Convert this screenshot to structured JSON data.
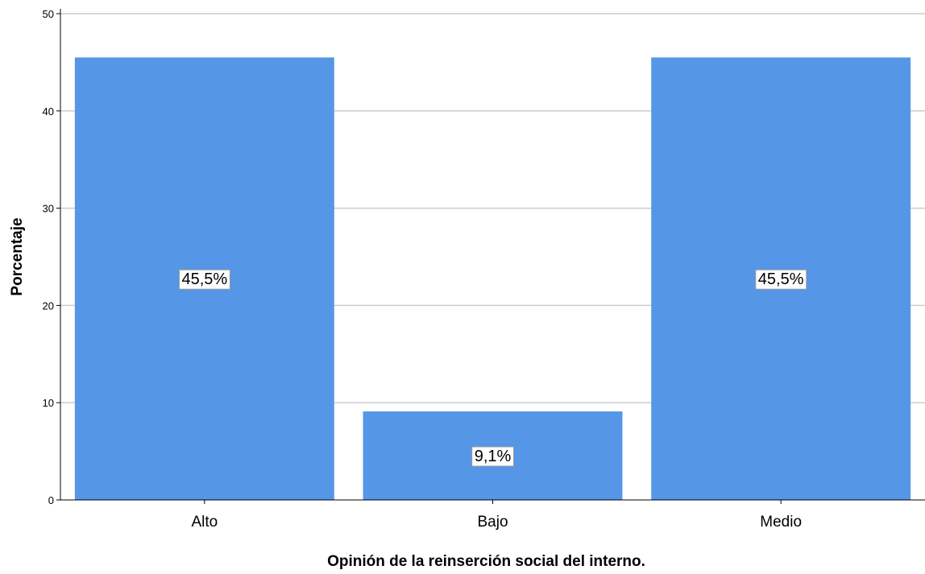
{
  "chart_data": {
    "type": "bar",
    "categories": [
      "Alto",
      "Bajo",
      "Medio"
    ],
    "values": [
      45.5,
      9.1,
      45.5
    ],
    "data_labels": [
      "45,5%",
      "9,1%",
      "45,5%"
    ],
    "title": "",
    "xlabel": "Opinión de la reinserción social del interno.",
    "ylabel": "Porcentaje",
    "ylim": [
      0,
      50
    ],
    "yticks": [
      0,
      10,
      20,
      30,
      40,
      50
    ],
    "grid": true,
    "legend": "none",
    "bar_color": "#5596e6",
    "grid_color": "#cccccc"
  }
}
